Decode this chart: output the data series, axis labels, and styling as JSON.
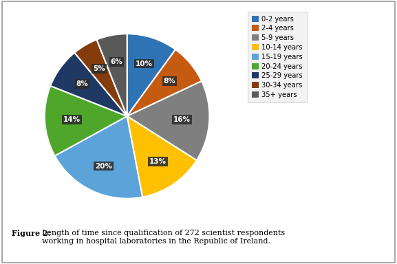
{
  "labels": [
    "0-2 years",
    "2-4 years",
    "5-9 years",
    "10-14 years",
    "15-19 years",
    "20-24 years",
    "25-29 years",
    "30-34 years",
    "35+ years"
  ],
  "values": [
    10,
    8,
    16,
    13,
    20,
    14,
    8,
    5,
    6
  ],
  "colors": [
    "#2E74B5",
    "#C55A11",
    "#7F7F7F",
    "#FFC000",
    "#5BA3D9",
    "#4EA72A",
    "#1F3864",
    "#843C0C",
    "#595959"
  ],
  "pct_labels": [
    "10%",
    "8%",
    "16%",
    "13%",
    "20%",
    "14%",
    "8%",
    "5%",
    "6%"
  ],
  "caption_bold": "Figure 2: ",
  "caption_rest": "Length of time since qualification of 272 scientist respondents\nworking in hospital laboratories in the Republic of Ireland.",
  "frame_color": "#aaaaaa",
  "bg_color": "#ffffff",
  "pie_bg_color": "#d8d8d8",
  "label_box_color": "#2d2d2d",
  "label_text_color": "#ffffff",
  "legend_bg": "#f0f0f0"
}
